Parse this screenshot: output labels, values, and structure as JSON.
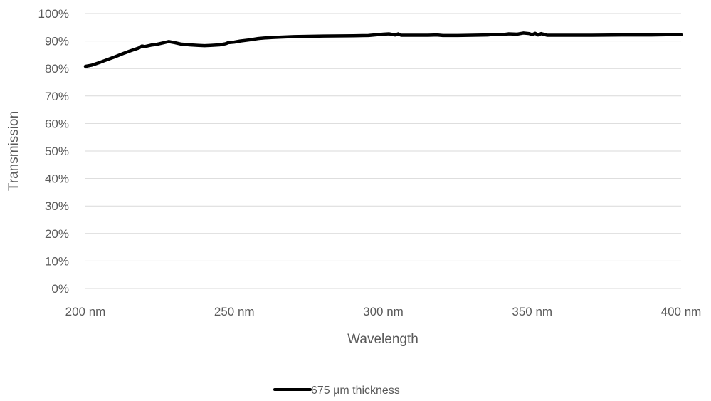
{
  "chart_data": {
    "type": "line",
    "title": "",
    "xlabel": "Wavelength",
    "ylabel": "Transmission",
    "xlim": [
      200,
      400
    ],
    "ylim": [
      0,
      100
    ],
    "x_ticks": [
      {
        "value": 200,
        "label": "200 nm"
      },
      {
        "value": 250,
        "label": "250 nm"
      },
      {
        "value": 300,
        "label": "300 nm"
      },
      {
        "value": 350,
        "label": "350 nm"
      },
      {
        "value": 400,
        "label": "400 nm"
      }
    ],
    "y_ticks": [
      {
        "value": 0,
        "label": "0%"
      },
      {
        "value": 10,
        "label": "10%"
      },
      {
        "value": 20,
        "label": "20%"
      },
      {
        "value": 30,
        "label": "30%"
      },
      {
        "value": 40,
        "label": "40%"
      },
      {
        "value": 50,
        "label": "50%"
      },
      {
        "value": 60,
        "label": "60%"
      },
      {
        "value": 70,
        "label": "70%"
      },
      {
        "value": 80,
        "label": "80%"
      },
      {
        "value": 90,
        "label": "90%"
      },
      {
        "value": 100,
        "label": "100%"
      }
    ],
    "grid": "horizontal",
    "legend_position": "bottom",
    "series": [
      {
        "name": "675 µm thickness",
        "color": "#000000",
        "x": [
          200,
          202,
          205,
          208,
          210,
          213,
          215,
          218,
          219,
          220,
          222,
          224,
          226,
          228,
          230,
          232,
          235,
          238,
          240,
          242,
          245,
          247,
          248,
          250,
          252,
          255,
          258,
          260,
          265,
          270,
          280,
          290,
          295,
          298,
          300,
          302,
          304,
          305,
          306,
          310,
          315,
          318,
          320,
          325,
          330,
          335,
          337,
          340,
          342,
          345,
          347,
          349,
          350,
          351,
          352,
          353,
          355,
          360,
          365,
          370,
          380,
          390,
          395,
          400
        ],
        "y": [
          80.8,
          81.2,
          82.3,
          83.5,
          84.3,
          85.6,
          86.4,
          87.5,
          88.2,
          88.0,
          88.5,
          88.8,
          89.3,
          89.8,
          89.4,
          88.9,
          88.6,
          88.4,
          88.3,
          88.4,
          88.6,
          89.0,
          89.4,
          89.6,
          90.0,
          90.4,
          90.9,
          91.1,
          91.4,
          91.6,
          91.8,
          91.9,
          92.0,
          92.3,
          92.5,
          92.6,
          92.2,
          92.6,
          92.1,
          92.1,
          92.1,
          92.2,
          92.0,
          92.0,
          92.1,
          92.2,
          92.4,
          92.3,
          92.6,
          92.5,
          92.9,
          92.7,
          92.3,
          92.8,
          92.2,
          92.7,
          92.1,
          92.1,
          92.1,
          92.1,
          92.2,
          92.2,
          92.3,
          92.3
        ]
      }
    ]
  }
}
